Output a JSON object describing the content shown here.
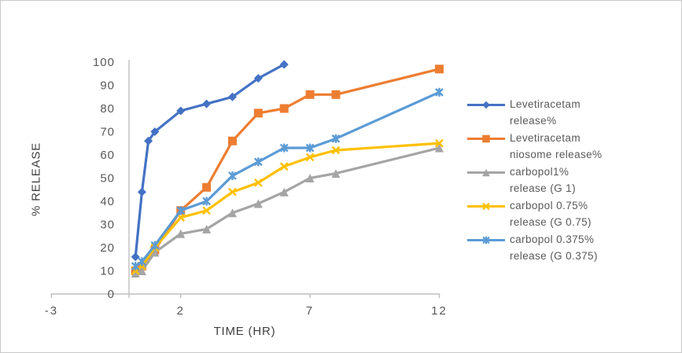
{
  "chart_data": {
    "type": "line",
    "title": "",
    "xlabel": "TIME (HR)",
    "ylabel": "% RELEASE",
    "xlim": [
      -3,
      12
    ],
    "ylim": [
      0,
      100
    ],
    "grid": false,
    "legend_position": "right",
    "x_ticks": [
      -3,
      2,
      7,
      12
    ],
    "x_tick_labels": [
      "-3",
      "2",
      "7",
      "12"
    ],
    "y_ticks": [
      0,
      10,
      20,
      30,
      40,
      50,
      60,
      70,
      80,
      90,
      100
    ],
    "series": [
      {
        "name": "Levetiracetam release%",
        "legend_lines": [
          "Levetiracetam",
          "release%"
        ],
        "color": "#4472C4",
        "marker": "diamond",
        "x": [
          0.25,
          0.5,
          0.75,
          1,
          2,
          3,
          4,
          5,
          6
        ],
        "y": [
          16,
          44,
          66,
          70,
          79,
          82,
          85,
          93,
          99
        ]
      },
      {
        "name": "Levetiracetam niosome release%",
        "legend_lines": [
          "Levetiracetam",
          "niosome release%"
        ],
        "color": "#ED7D31",
        "marker": "square",
        "x": [
          0.25,
          0.5,
          1,
          2,
          3,
          4,
          5,
          6,
          7,
          8,
          12
        ],
        "y": [
          10,
          12,
          19,
          36,
          46,
          66,
          78,
          80,
          86,
          86,
          97
        ]
      },
      {
        "name": "carbopol1% release (G 1)",
        "legend_lines": [
          "carbopol1%",
          "release (G 1)"
        ],
        "color": "#A5A5A5",
        "marker": "triangle",
        "x": [
          0.25,
          0.5,
          1,
          2,
          3,
          4,
          5,
          6,
          7,
          8,
          12
        ],
        "y": [
          9,
          10,
          18,
          26,
          28,
          35,
          39,
          44,
          50,
          52,
          63
        ]
      },
      {
        "name": "carbopol 0.75% release (G 0.75)",
        "legend_lines": [
          "carbopol 0.75%",
          "release (G 0.75)"
        ],
        "color": "#FFC000",
        "marker": "x",
        "x": [
          0.25,
          0.5,
          1,
          2,
          3,
          4,
          5,
          6,
          7,
          8,
          12
        ],
        "y": [
          10,
          12,
          20,
          33,
          36,
          44,
          48,
          55,
          59,
          62,
          65
        ]
      },
      {
        "name": "carbopol 0.375% release (G 0.375)",
        "legend_lines": [
          "carbopol 0.375%",
          "release (G 0.375)"
        ],
        "color": "#5B9BD5",
        "marker": "asterisk",
        "x": [
          0.25,
          0.5,
          1,
          2,
          3,
          4,
          5,
          6,
          7,
          8,
          12
        ],
        "y": [
          12,
          14,
          21,
          36,
          40,
          51,
          57,
          63,
          63,
          67,
          87
        ]
      }
    ],
    "style": {
      "axis_color": "#BFBFBF",
      "tick_label_color": "#595959",
      "axis_title_color": "#404040",
      "background": "#FFFFFF"
    }
  }
}
